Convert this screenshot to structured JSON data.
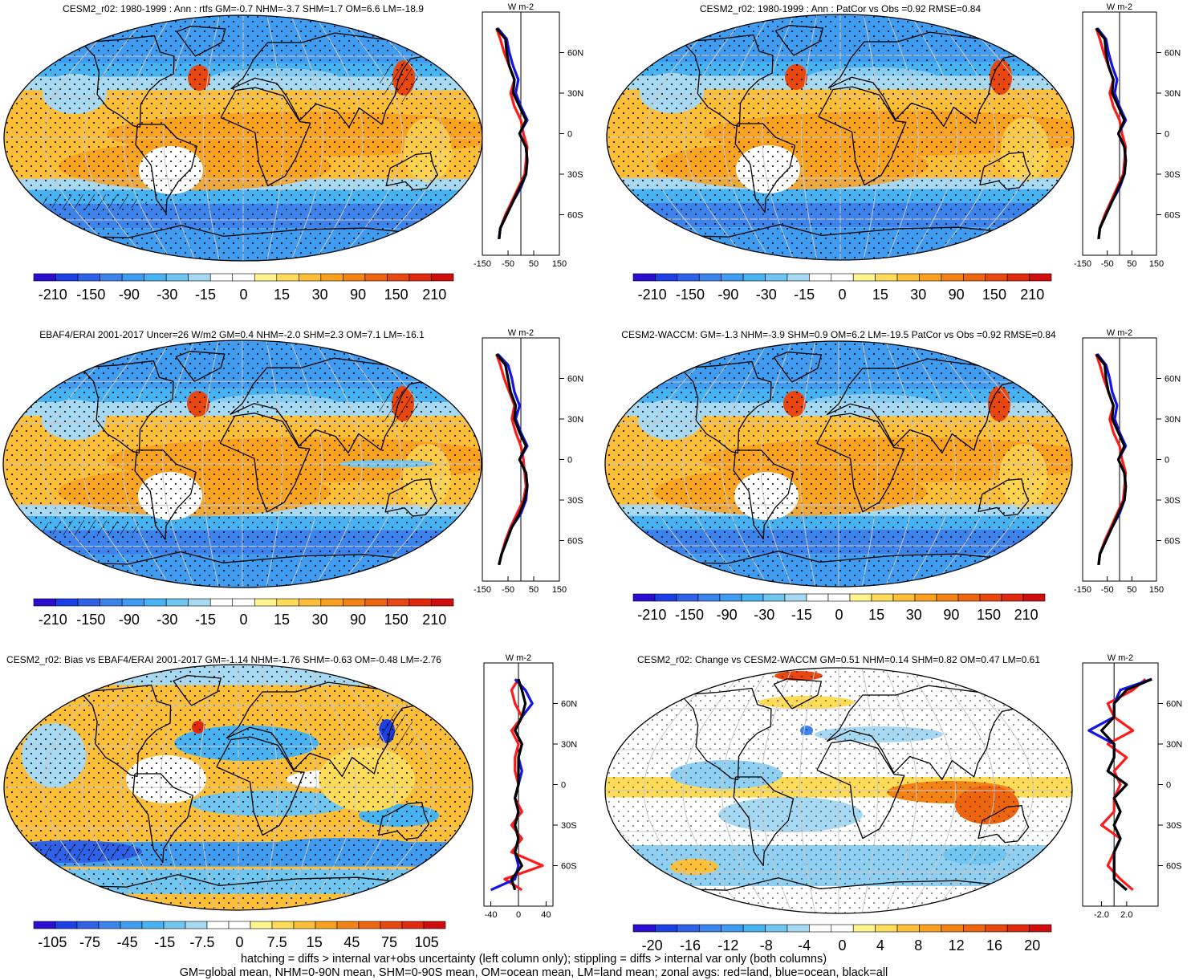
{
  "footer": {
    "line1": "hatching = diffs > internal var+obs uncertainty (left column only); stippling = diffs > internal var only (both columns)",
    "line2": "GM=global mean, NHM=0-90N mean, SHM=0-90S mean, OM=ocean mean, LM=land mean; zonal avgs: red=land, blue=ocean, black=all"
  },
  "colors": {
    "land": "#ff1a1a",
    "ocean": "#1414e6",
    "all": "#000000"
  },
  "chart_data": [
    {
      "type": "heatmap",
      "title": "CESM2_r02: 1980-1999 : Ann : rtfs GM=-0.7 NHM=-3.7 SHM=1.7 OM=6.6 LM=-18.9",
      "colorbar_labels": [
        "-210",
        "-150",
        "-90",
        "-30",
        "-15",
        "0",
        "15",
        "30",
        "90",
        "150",
        "210"
      ],
      "profile_units": "W m-2",
      "profile_xticks": [
        "-150",
        "-50",
        "50",
        "150"
      ],
      "profile_xlim": [
        -150,
        150
      ],
      "lat_ticks": [
        "60N",
        "30N",
        "0",
        "30S",
        "60S"
      ],
      "lat": [
        -78,
        -70,
        -60,
        -50,
        -40,
        -30,
        -20,
        -10,
        0,
        10,
        20,
        30,
        40,
        50,
        60,
        70,
        78
      ],
      "series": [
        {
          "name": "land",
          "values": [
            -85,
            -80,
            -60,
            -35,
            -10,
            15,
            20,
            25,
            10,
            0,
            -25,
            -40,
            -25,
            -45,
            -65,
            -80,
            -95
          ]
        },
        {
          "name": "ocean",
          "values": [
            -85,
            -80,
            -55,
            -30,
            0,
            20,
            25,
            20,
            -5,
            25,
            0,
            -20,
            -10,
            -30,
            -45,
            -55,
            -90
          ]
        },
        {
          "name": "all",
          "values": [
            -85,
            -80,
            -55,
            -30,
            -5,
            20,
            25,
            20,
            -5,
            20,
            -5,
            -30,
            -25,
            -45,
            -55,
            -60,
            -95
          ]
        }
      ]
    },
    {
      "type": "heatmap",
      "title": "CESM2_r02: 1980-1999 : Ann : PatCor vs Obs =0.92 RMSE=0.84",
      "colorbar_labels": [
        "-210",
        "-150",
        "-90",
        "-30",
        "-15",
        "0",
        "15",
        "30",
        "90",
        "150",
        "210"
      ],
      "profile_units": "W m-2",
      "profile_xticks": [
        "-150",
        "-50",
        "50",
        "150"
      ],
      "profile_xlim": [
        -150,
        150
      ],
      "lat_ticks": [
        "60N",
        "30N",
        "0",
        "30S",
        "60S"
      ],
      "lat": [
        -78,
        -70,
        -60,
        -50,
        -40,
        -30,
        -20,
        -10,
        0,
        10,
        20,
        30,
        40,
        50,
        60,
        70,
        78
      ],
      "series": [
        {
          "name": "land",
          "values": [
            -85,
            -80,
            -60,
            -35,
            -10,
            15,
            20,
            25,
            10,
            0,
            -25,
            -40,
            -25,
            -45,
            -65,
            -80,
            -95
          ]
        },
        {
          "name": "ocean",
          "values": [
            -85,
            -80,
            -55,
            -30,
            0,
            20,
            25,
            20,
            -5,
            25,
            0,
            -20,
            -10,
            -30,
            -45,
            -55,
            -90
          ]
        },
        {
          "name": "all",
          "values": [
            -85,
            -80,
            -55,
            -30,
            -5,
            20,
            25,
            20,
            -5,
            20,
            -5,
            -30,
            -25,
            -45,
            -55,
            -60,
            -95
          ]
        }
      ]
    },
    {
      "type": "heatmap",
      "title": "EBAF4/ERAI 2001-2017 Uncer=26 W/m2 GM=0.4 NHM=-2.0 SHM=2.3 OM=7.1 LM=-16.1",
      "colorbar_labels": [
        "-210",
        "-150",
        "-90",
        "-30",
        "-15",
        "0",
        "15",
        "30",
        "90",
        "150",
        "210"
      ],
      "profile_units": "W m-2",
      "profile_xticks": [
        "-150",
        "-50",
        "50",
        "150"
      ],
      "profile_xlim": [
        -150,
        150
      ],
      "lat_ticks": [
        "60N",
        "30N",
        "0",
        "30S",
        "60S"
      ],
      "lat": [
        -78,
        -70,
        -60,
        -50,
        -40,
        -30,
        -20,
        -10,
        0,
        10,
        20,
        30,
        40,
        50,
        60,
        70,
        78
      ],
      "series": [
        {
          "name": "land",
          "values": [
            -85,
            -75,
            -60,
            -40,
            -15,
            10,
            20,
            15,
            10,
            0,
            -20,
            -35,
            -25,
            -45,
            -65,
            -80,
            -95
          ]
        },
        {
          "name": "ocean",
          "values": [
            -85,
            -75,
            -55,
            -35,
            0,
            20,
            25,
            20,
            -5,
            25,
            0,
            -20,
            -5,
            -25,
            -35,
            -50,
            -90
          ]
        },
        {
          "name": "all",
          "values": [
            -85,
            -75,
            -55,
            -35,
            -5,
            15,
            25,
            20,
            -5,
            20,
            -5,
            -25,
            -20,
            -40,
            -50,
            -60,
            -95
          ]
        }
      ]
    },
    {
      "type": "heatmap",
      "title": "CESM2-WACCM: GM=-1.3 NHM=-3.9 SHM=0.9 OM=6.2 LM=-19.5 PatCor vs Obs =0.92 RMSE=0.84",
      "colorbar_labels": [
        "-210",
        "-150",
        "-90",
        "-30",
        "-15",
        "0",
        "15",
        "30",
        "90",
        "150",
        "210"
      ],
      "profile_units": "W m-2",
      "profile_xticks": [
        "-150",
        "-50",
        "50",
        "150"
      ],
      "profile_xlim": [
        -150,
        150
      ],
      "lat_ticks": [
        "60N",
        "30N",
        "0",
        "30S",
        "60S"
      ],
      "lat": [
        -78,
        -70,
        -60,
        -50,
        -40,
        -30,
        -20,
        -10,
        0,
        10,
        20,
        30,
        40,
        50,
        60,
        70,
        78
      ],
      "series": [
        {
          "name": "land",
          "values": [
            -85,
            -80,
            -60,
            -35,
            -10,
            15,
            20,
            25,
            10,
            0,
            -25,
            -40,
            -25,
            -45,
            -65,
            -80,
            -95
          ]
        },
        {
          "name": "ocean",
          "values": [
            -85,
            -80,
            -55,
            -30,
            0,
            20,
            25,
            20,
            -5,
            25,
            0,
            -20,
            -10,
            -30,
            -40,
            -55,
            -90
          ]
        },
        {
          "name": "all",
          "values": [
            -85,
            -80,
            -55,
            -30,
            -5,
            20,
            25,
            20,
            -5,
            20,
            -5,
            -30,
            -25,
            -45,
            -55,
            -60,
            -95
          ]
        }
      ]
    },
    {
      "type": "heatmap",
      "title": "CESM2_r02: Bias vs EBAF4/ERAI 2001-2017 GM=-1.14 NHM=-1.76 SHM=-0.63 OM=-0.48 LM=-2.76",
      "colorbar_labels": [
        "-105",
        "-75",
        "-45",
        "-15",
        "-7.5",
        "0",
        "7.5",
        "15",
        "45",
        "75",
        "105"
      ],
      "profile_units": "W m-2",
      "profile_xticks": [
        "-40",
        "0",
        "40"
      ],
      "profile_xlim": [
        -50,
        50
      ],
      "lat_ticks": [
        "60N",
        "30N",
        "0",
        "30S",
        "60S"
      ],
      "lat": [
        -78,
        -70,
        -60,
        -50,
        -40,
        -30,
        -20,
        -10,
        0,
        10,
        20,
        30,
        40,
        50,
        60,
        70,
        78
      ],
      "series": [
        {
          "name": "land",
          "values": [
            5,
            -20,
            35,
            -10,
            5,
            -10,
            5,
            -5,
            0,
            -5,
            -5,
            0,
            -10,
            5,
            -5,
            -10,
            0
          ]
        },
        {
          "name": "ocean",
          "values": [
            -40,
            -5,
            0,
            -5,
            0,
            -5,
            0,
            -5,
            0,
            5,
            0,
            5,
            -5,
            5,
            20,
            10,
            -5
          ]
        },
        {
          "name": "all",
          "values": [
            -5,
            -10,
            5,
            -5,
            0,
            -5,
            0,
            -5,
            0,
            0,
            0,
            5,
            -5,
            5,
            10,
            5,
            0
          ]
        }
      ]
    },
    {
      "type": "heatmap",
      "title": "CESM2_r02: Change vs CESM2-WACCM GM=0.51 NHM=0.14 SHM=0.82 OM=0.47 LM=0.61",
      "colorbar_labels": [
        "-20",
        "-16",
        "-12",
        "-8",
        "-4",
        "0",
        "4",
        "8",
        "12",
        "16",
        "20"
      ],
      "profile_units": "W m-2",
      "profile_xticks": [
        "-2.0",
        "2.0"
      ],
      "profile_xlim": [
        -5,
        7
      ],
      "lat_ticks": [
        "60N",
        "30N",
        "0",
        "30S",
        "60S"
      ],
      "lat": [
        -78,
        -70,
        -60,
        -50,
        -40,
        -30,
        -20,
        -10,
        0,
        10,
        20,
        30,
        40,
        50,
        60,
        70,
        78
      ],
      "series": [
        {
          "name": "land",
          "values": [
            3,
            1,
            -1,
            0,
            1,
            -2,
            0,
            0,
            1,
            0,
            2,
            -1,
            3,
            0,
            -1,
            3,
            5
          ]
        },
        {
          "name": "ocean",
          "values": [
            2,
            0,
            0,
            0,
            1,
            0,
            1,
            0,
            2,
            -1,
            0,
            0,
            -4,
            0,
            0,
            1,
            6
          ]
        },
        {
          "name": "all",
          "values": [
            2,
            0,
            0,
            0,
            1,
            0,
            1,
            0,
            2,
            -1,
            0,
            0,
            -2,
            0,
            0,
            2,
            6
          ]
        }
      ]
    }
  ]
}
